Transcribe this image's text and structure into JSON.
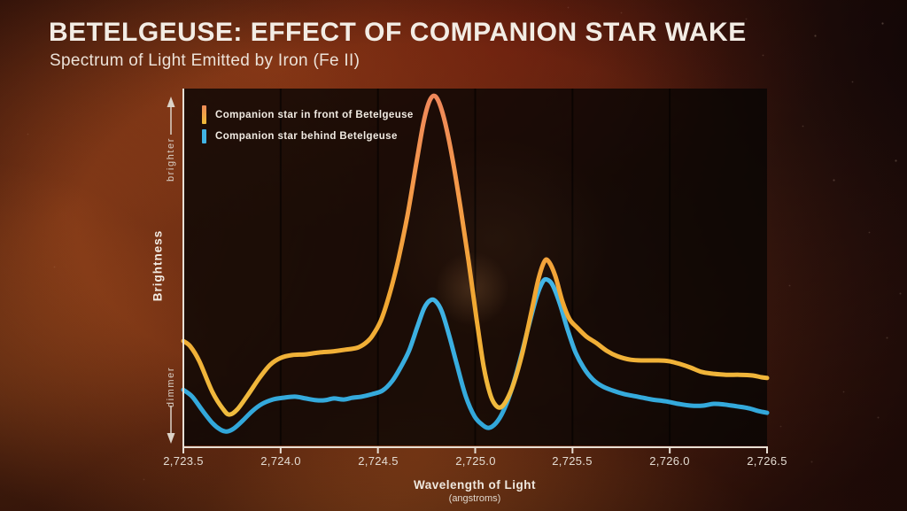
{
  "header": {
    "title": "BETELGEUSE: EFFECT OF COMPANION STAR WAKE",
    "subtitle": "Spectrum of Light Emitted by Iron (Fe II)"
  },
  "colors": {
    "front_peak": "#ef875c",
    "front_mid": "#f2a636",
    "front_low": "#f0c242",
    "behind_high": "#6fd0f5",
    "behind_mid": "#46b8e8",
    "behind_low": "#2fa5d8",
    "axis": "#e7dfd4",
    "gridline": "rgba(0,0,0,0.55)",
    "annotation": "#dcd3c8"
  },
  "chart_data": {
    "type": "line",
    "title": "Spectrum of Light Emitted by Iron (Fe II)",
    "xlabel": "Wavelength of Light",
    "xlabel_unit": "(angstroms)",
    "ylabel": "Brightness",
    "y_annotations": [
      "brighter",
      "dimmer"
    ],
    "x_ticks": [
      "2,723.5",
      "2,724.0",
      "2,724.5",
      "2,725.0",
      "2,725.5",
      "2,726.0",
      "2,726.5"
    ],
    "x_tick_values": [
      2723.5,
      2724.0,
      2724.5,
      2725.0,
      2725.5,
      2726.0,
      2726.5
    ],
    "xlim": [
      2723.5,
      2726.5
    ],
    "ylim": [
      0,
      1
    ],
    "grid": "vertical-only",
    "legend_position": "top-left",
    "series": [
      {
        "name": "Companion star in front of Betelgeuse",
        "color": "#f2a636",
        "gradient": [
          [
            0,
            "#ef875c"
          ],
          [
            0.3,
            "#f49a48"
          ],
          [
            0.6,
            "#f1a832"
          ],
          [
            1,
            "#f0c242"
          ]
        ],
        "points": [
          [
            2723.5,
            0.296
          ],
          [
            2723.536,
            0.281
          ],
          [
            2723.582,
            0.24
          ],
          [
            2723.65,
            0.153
          ],
          [
            2723.705,
            0.106
          ],
          [
            2723.737,
            0.091
          ],
          [
            2723.778,
            0.106
          ],
          [
            2723.832,
            0.146
          ],
          [
            2723.891,
            0.193
          ],
          [
            2723.946,
            0.23
          ],
          [
            2724.0,
            0.249
          ],
          [
            2724.06,
            0.257
          ],
          [
            2724.128,
            0.259
          ],
          [
            2724.196,
            0.264
          ],
          [
            2724.265,
            0.267
          ],
          [
            2724.333,
            0.272
          ],
          [
            2724.392,
            0.277
          ],
          [
            2724.433,
            0.289
          ],
          [
            2724.469,
            0.309
          ],
          [
            2724.515,
            0.353
          ],
          [
            2724.56,
            0.427
          ],
          [
            2724.606,
            0.526
          ],
          [
            2724.652,
            0.647
          ],
          [
            2724.697,
            0.79
          ],
          [
            2724.733,
            0.901
          ],
          [
            2724.761,
            0.96
          ],
          [
            2724.788,
            0.98
          ],
          [
            2724.815,
            0.96
          ],
          [
            2724.847,
            0.901
          ],
          [
            2724.884,
            0.802
          ],
          [
            2724.925,
            0.667
          ],
          [
            2724.966,
            0.519
          ],
          [
            2725.007,
            0.358
          ],
          [
            2725.043,
            0.227
          ],
          [
            2725.075,
            0.151
          ],
          [
            2725.102,
            0.119
          ],
          [
            2725.13,
            0.111
          ],
          [
            2725.161,
            0.131
          ],
          [
            2725.198,
            0.178
          ],
          [
            2725.243,
            0.264
          ],
          [
            2725.289,
            0.378
          ],
          [
            2725.325,
            0.469
          ],
          [
            2725.357,
            0.519
          ],
          [
            2725.38,
            0.516
          ],
          [
            2725.412,
            0.477
          ],
          [
            2725.448,
            0.407
          ],
          [
            2725.484,
            0.358
          ],
          [
            2725.525,
            0.333
          ],
          [
            2725.571,
            0.309
          ],
          [
            2725.621,
            0.291
          ],
          [
            2725.676,
            0.269
          ],
          [
            2725.73,
            0.254
          ],
          [
            2725.799,
            0.244
          ],
          [
            2725.867,
            0.242
          ],
          [
            2725.935,
            0.242
          ],
          [
            2725.994,
            0.24
          ],
          [
            2726.053,
            0.232
          ],
          [
            2726.108,
            0.222
          ],
          [
            2726.163,
            0.21
          ],
          [
            2726.222,
            0.205
          ],
          [
            2726.29,
            0.202
          ],
          [
            2726.358,
            0.202
          ],
          [
            2726.427,
            0.2
          ],
          [
            2726.472,
            0.195
          ],
          [
            2726.5,
            0.193
          ]
        ]
      },
      {
        "name": "Companion star behind Betelgeuse",
        "color": "#41b3e4",
        "gradient": [
          [
            0,
            "#6fd0f5"
          ],
          [
            0.45,
            "#46b8e8"
          ],
          [
            1,
            "#2fa5d8"
          ]
        ],
        "points": [
          [
            2723.5,
            0.16
          ],
          [
            2723.546,
            0.141
          ],
          [
            2723.596,
            0.104
          ],
          [
            2723.65,
            0.067
          ],
          [
            2723.691,
            0.049
          ],
          [
            2723.723,
            0.044
          ],
          [
            2723.759,
            0.052
          ],
          [
            2723.805,
            0.074
          ],
          [
            2723.855,
            0.101
          ],
          [
            2723.905,
            0.121
          ],
          [
            2723.96,
            0.133
          ],
          [
            2724.014,
            0.138
          ],
          [
            2724.073,
            0.141
          ],
          [
            2724.128,
            0.136
          ],
          [
            2724.183,
            0.131
          ],
          [
            2724.228,
            0.131
          ],
          [
            2724.274,
            0.136
          ],
          [
            2724.324,
            0.133
          ],
          [
            2724.369,
            0.138
          ],
          [
            2724.415,
            0.141
          ],
          [
            2724.469,
            0.148
          ],
          [
            2724.524,
            0.158
          ],
          [
            2724.574,
            0.185
          ],
          [
            2724.619,
            0.225
          ],
          [
            2724.66,
            0.269
          ],
          [
            2724.701,
            0.333
          ],
          [
            2724.738,
            0.388
          ],
          [
            2724.77,
            0.41
          ],
          [
            2724.797,
            0.407
          ],
          [
            2724.829,
            0.378
          ],
          [
            2724.865,
            0.314
          ],
          [
            2724.906,
            0.23
          ],
          [
            2724.952,
            0.141
          ],
          [
            2724.997,
            0.086
          ],
          [
            2725.038,
            0.062
          ],
          [
            2725.07,
            0.054
          ],
          [
            2725.106,
            0.067
          ],
          [
            2725.143,
            0.099
          ],
          [
            2725.184,
            0.156
          ],
          [
            2725.229,
            0.24
          ],
          [
            2725.275,
            0.338
          ],
          [
            2725.316,
            0.42
          ],
          [
            2725.348,
            0.462
          ],
          [
            2725.371,
            0.467
          ],
          [
            2725.398,
            0.452
          ],
          [
            2725.434,
            0.402
          ],
          [
            2725.475,
            0.328
          ],
          [
            2725.516,
            0.264
          ],
          [
            2725.557,
            0.222
          ],
          [
            2725.603,
            0.19
          ],
          [
            2725.653,
            0.17
          ],
          [
            2725.707,
            0.158
          ],
          [
            2725.767,
            0.148
          ],
          [
            2725.835,
            0.141
          ],
          [
            2725.908,
            0.133
          ],
          [
            2725.98,
            0.128
          ],
          [
            2726.044,
            0.121
          ],
          [
            2726.108,
            0.116
          ],
          [
            2726.172,
            0.116
          ],
          [
            2726.226,
            0.121
          ],
          [
            2726.281,
            0.119
          ],
          [
            2726.345,
            0.114
          ],
          [
            2726.404,
            0.109
          ],
          [
            2726.454,
            0.101
          ],
          [
            2726.5,
            0.096
          ]
        ]
      }
    ]
  }
}
